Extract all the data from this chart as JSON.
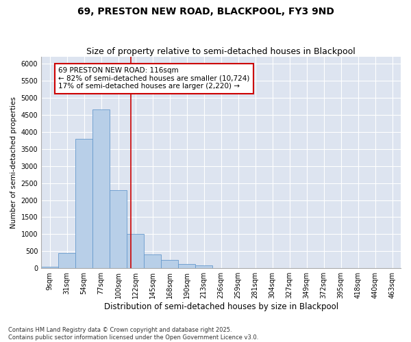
{
  "title1": "69, PRESTON NEW ROAD, BLACKPOOL, FY3 9ND",
  "title2": "Size of property relative to semi-detached houses in Blackpool",
  "xlabel": "Distribution of semi-detached houses by size in Blackpool",
  "ylabel": "Number of semi-detached properties",
  "bins": [
    "9sqm",
    "31sqm",
    "54sqm",
    "77sqm",
    "100sqm",
    "122sqm",
    "145sqm",
    "168sqm",
    "190sqm",
    "213sqm",
    "236sqm",
    "259sqm",
    "281sqm",
    "304sqm",
    "327sqm",
    "349sqm",
    "372sqm",
    "395sqm",
    "418sqm",
    "440sqm",
    "463sqm"
  ],
  "values": [
    50,
    450,
    3800,
    4650,
    2300,
    1000,
    400,
    240,
    130,
    80,
    0,
    0,
    0,
    0,
    0,
    0,
    0,
    0,
    0,
    0,
    0
  ],
  "bar_color": "#b8cfe8",
  "bar_edge_color": "#6699cc",
  "vline_color": "#cc0000",
  "annotation_text": "69 PRESTON NEW ROAD: 116sqm\n← 82% of semi-detached houses are smaller (10,724)\n17% of semi-detached houses are larger (2,220) →",
  "annotation_box_color": "#ffffff",
  "annotation_box_edge": "#cc0000",
  "ylim": [
    0,
    6200
  ],
  "yticks": [
    0,
    500,
    1000,
    1500,
    2000,
    2500,
    3000,
    3500,
    4000,
    4500,
    5000,
    5500,
    6000
  ],
  "background_color": "#dde4f0",
  "footnote": "Contains HM Land Registry data © Crown copyright and database right 2025.\nContains public sector information licensed under the Open Government Licence v3.0.",
  "title1_fontsize": 10,
  "title2_fontsize": 9,
  "xlabel_fontsize": 8.5,
  "ylabel_fontsize": 7.5,
  "tick_fontsize": 7,
  "annotation_fontsize": 7.5,
  "footnote_fontsize": 6
}
